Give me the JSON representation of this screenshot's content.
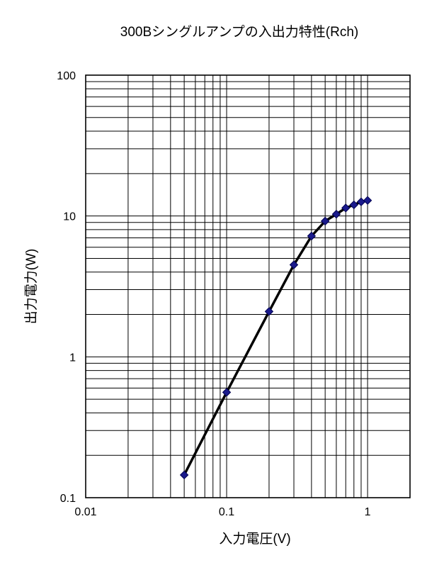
{
  "page": {
    "background": "#ffffff"
  },
  "chart_data": {
    "type": "line",
    "title": "300Bシングルアンプの入出力特性(Rch)",
    "xlabel": "入力電圧(V)",
    "ylabel": "出力電力(W)",
    "x_scale": "log",
    "y_scale": "log",
    "xlim": [
      0.01,
      2
    ],
    "ylim": [
      0.1,
      100
    ],
    "grid": {
      "minor_log_grid_both_axes": true,
      "color": "#000000"
    },
    "legend": "none",
    "x_ticks": [
      {
        "value": 0.01,
        "label": "0.01"
      },
      {
        "value": 0.1,
        "label": "0.1"
      },
      {
        "value": 1,
        "label": "1"
      }
    ],
    "y_ticks": [
      {
        "value": 0.1,
        "label": "0.1"
      },
      {
        "value": 1,
        "label": "1"
      },
      {
        "value": 10,
        "label": "10"
      },
      {
        "value": 100,
        "label": "100"
      }
    ],
    "series": [
      {
        "name": "Rch",
        "x": [
          0.05,
          0.1,
          0.2,
          0.3,
          0.4,
          0.5,
          0.6,
          0.7,
          0.8,
          0.9,
          1.0
        ],
        "y": [
          0.145,
          0.56,
          2.1,
          4.5,
          7.2,
          9.2,
          10.3,
          11.4,
          12.0,
          12.6,
          12.9
        ],
        "line_color": "#000000",
        "line_width": 3.5,
        "marker": "diamond",
        "marker_size": 11,
        "marker_color": "#1a1a8c",
        "marker_edge_color": "#000050"
      }
    ]
  }
}
